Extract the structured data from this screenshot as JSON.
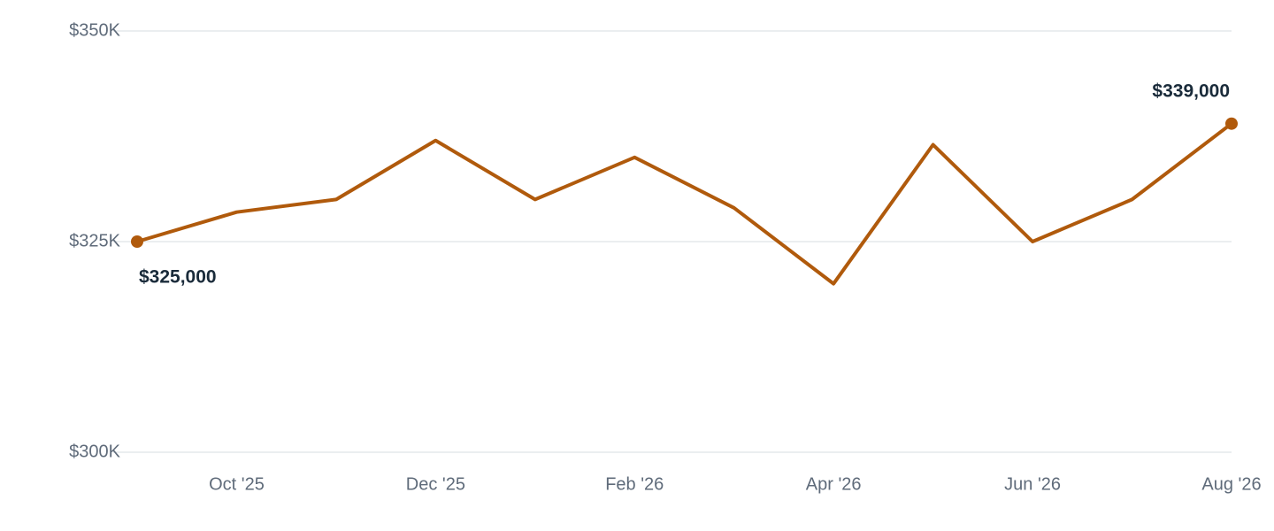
{
  "chart_data": {
    "type": "line",
    "categories": [
      null,
      "Oct '25",
      null,
      "Dec '25",
      null,
      "Feb '26",
      null,
      "Apr '26",
      null,
      "Jun '26",
      null,
      "Aug '26"
    ],
    "values": [
      325000,
      328500,
      330000,
      337000,
      330000,
      335000,
      329000,
      320000,
      336500,
      325000,
      330000,
      339000
    ],
    "value_labels": [
      "$325,000",
      null,
      null,
      null,
      null,
      null,
      null,
      null,
      null,
      null,
      null,
      "$339,000"
    ],
    "color": "#b05a0c",
    "ylim": [
      300000,
      350000
    ],
    "yticks": [
      {
        "value": 300000,
        "label": "$300K"
      },
      {
        "value": 325000,
        "label": "$325K"
      },
      {
        "value": 350000,
        "label": "$350K"
      }
    ],
    "grid": true
  }
}
